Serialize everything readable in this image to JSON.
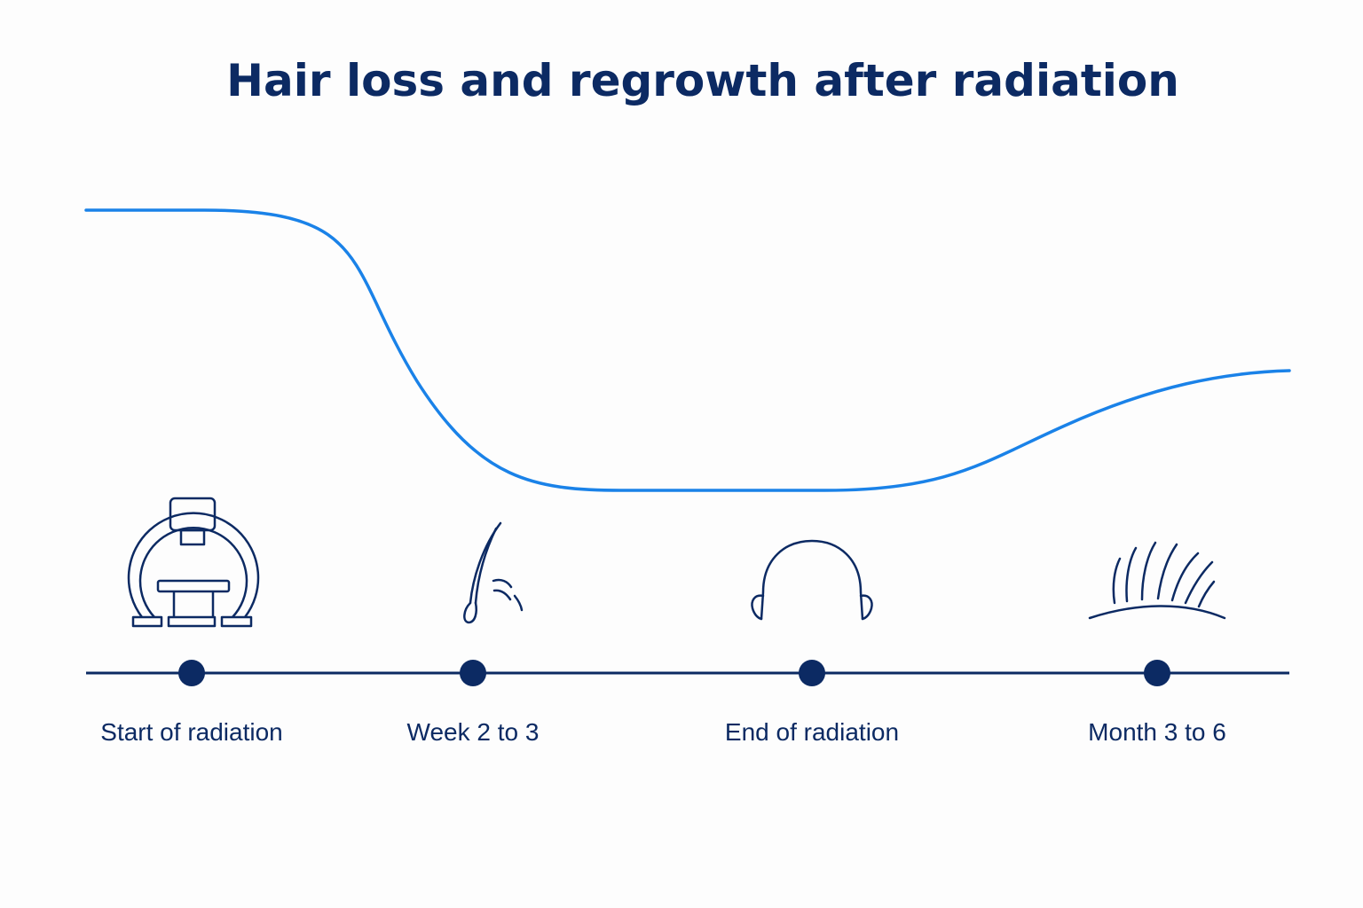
{
  "title": "Hair loss and regrowth after radiation",
  "colors": {
    "curve": "#1a82e8",
    "ink": "#0c2a63",
    "background": "#fdfdfd"
  },
  "milestones": [
    {
      "label": "Start of radiation",
      "icon": "radiation-machine-icon"
    },
    {
      "label": "Week 2 to 3",
      "icon": "falling-hair-icon"
    },
    {
      "label": "End of radiation",
      "icon": "bald-head-icon"
    },
    {
      "label": "Month 3 to 6",
      "icon": "regrowing-hair-icon"
    }
  ]
}
